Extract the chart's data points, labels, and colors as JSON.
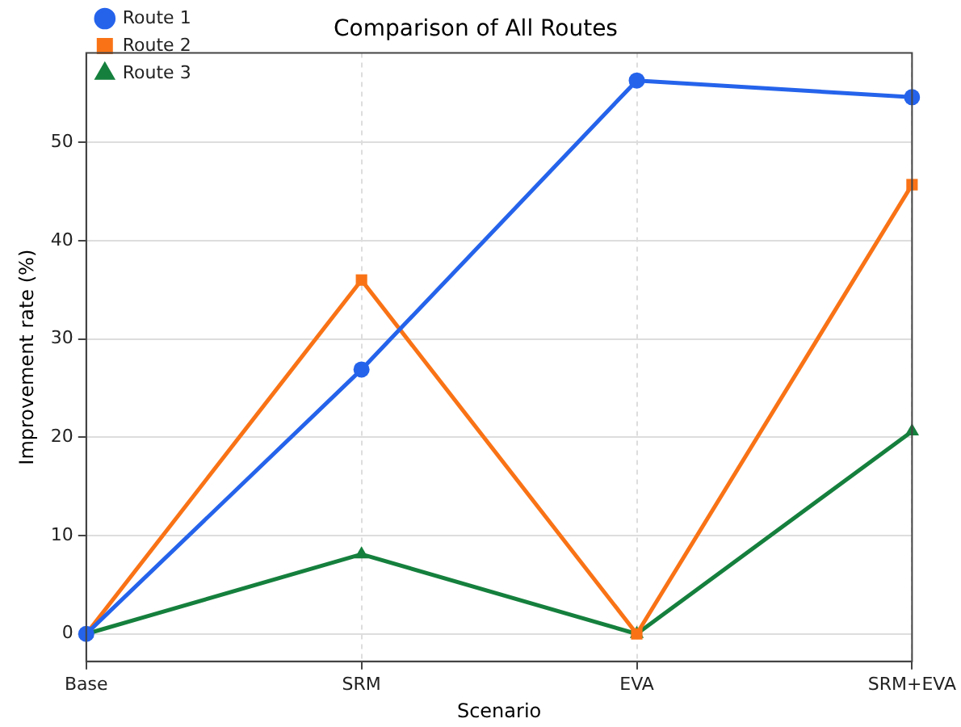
{
  "chart_data": {
    "type": "line",
    "title": "Comparison of All Routes",
    "xlabel": "Scenario",
    "ylabel": "Improvement rate (%)",
    "categories": [
      "Base",
      "SRM",
      "EVA",
      "SRM+EVA"
    ],
    "series": [
      {
        "name": "Route 1",
        "color": "#2563eb",
        "marker": "circle",
        "values": [
          0,
          26.9,
          56.3,
          54.6
        ]
      },
      {
        "name": "Route 2",
        "color": "#f97316",
        "marker": "square",
        "values": [
          0,
          36.0,
          0,
          45.7
        ]
      },
      {
        "name": "Route 3",
        "color": "#15803d",
        "marker": "triangle",
        "values": [
          0,
          8.1,
          0,
          20.6
        ]
      }
    ],
    "ylim": [
      -2.8,
      59.1
    ],
    "yticks": [
      0,
      10,
      20,
      30,
      40,
      50
    ],
    "grid": true,
    "legend": "top left",
    "line_style": "solid"
  }
}
